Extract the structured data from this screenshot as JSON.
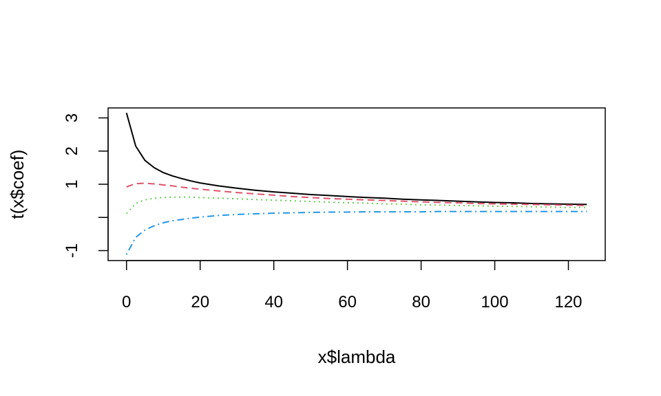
{
  "chart_data": {
    "type": "line",
    "title": "",
    "xlabel": "x$lambda",
    "ylabel": "t(x$coef)",
    "xlim": [
      -5,
      130
    ],
    "ylim": [
      -1.3,
      3.3
    ],
    "xticks": [
      0,
      20,
      40,
      60,
      80,
      100,
      120
    ],
    "yticks": [
      -1,
      0,
      1,
      2,
      3
    ],
    "yticklabels": [
      "-1",
      "",
      "1",
      "2",
      "3"
    ],
    "grid": false,
    "legend": "none",
    "series": [
      {
        "color": "#000000",
        "dash": "solid",
        "x": [
          0,
          2.5,
          5,
          7.5,
          10,
          12.5,
          15,
          17.5,
          20,
          25,
          30,
          35,
          40,
          45,
          50,
          55,
          60,
          65,
          70,
          75,
          80,
          85,
          90,
          95,
          100,
          105,
          110,
          115,
          120,
          125
        ],
        "y": [
          3.15,
          2.15,
          1.72,
          1.5,
          1.35,
          1.25,
          1.17,
          1.1,
          1.04,
          0.95,
          0.88,
          0.82,
          0.77,
          0.73,
          0.69,
          0.66,
          0.63,
          0.6,
          0.58,
          0.55,
          0.53,
          0.51,
          0.49,
          0.47,
          0.45,
          0.44,
          0.42,
          0.41,
          0.4,
          0.39
        ]
      },
      {
        "color": "#DF536B",
        "dash": "dashed",
        "x": [
          0,
          2.5,
          5,
          7.5,
          10,
          12.5,
          15,
          17.5,
          20,
          25,
          30,
          35,
          40,
          45,
          50,
          55,
          60,
          65,
          70,
          75,
          80,
          85,
          90,
          95,
          100,
          105,
          110,
          115,
          120,
          125
        ],
        "y": [
          0.92,
          1.02,
          1.03,
          1.01,
          0.98,
          0.95,
          0.91,
          0.88,
          0.85,
          0.8,
          0.75,
          0.71,
          0.67,
          0.63,
          0.6,
          0.57,
          0.55,
          0.53,
          0.51,
          0.49,
          0.47,
          0.45,
          0.44,
          0.42,
          0.41,
          0.4,
          0.39,
          0.38,
          0.37,
          0.36
        ]
      },
      {
        "color": "#61D04F",
        "dash": "dotted",
        "x": [
          0,
          2.5,
          5,
          7.5,
          10,
          12.5,
          15,
          17.5,
          20,
          25,
          30,
          35,
          40,
          45,
          50,
          55,
          60,
          65,
          70,
          75,
          80,
          85,
          90,
          95,
          100,
          105,
          110,
          115,
          120,
          125
        ],
        "y": [
          0.12,
          0.42,
          0.53,
          0.58,
          0.6,
          0.61,
          0.61,
          0.61,
          0.6,
          0.58,
          0.56,
          0.54,
          0.52,
          0.5,
          0.48,
          0.46,
          0.44,
          0.43,
          0.41,
          0.4,
          0.38,
          0.37,
          0.36,
          0.35,
          0.34,
          0.33,
          0.32,
          0.31,
          0.3,
          0.3
        ]
      },
      {
        "color": "#2297E6",
        "dash": "dotdash",
        "x": [
          0,
          2.5,
          5,
          7.5,
          10,
          12.5,
          15,
          17.5,
          20,
          25,
          30,
          35,
          40,
          45,
          50,
          55,
          60,
          65,
          70,
          75,
          80,
          85,
          90,
          95,
          100,
          105,
          110,
          115,
          120,
          125
        ],
        "y": [
          -1.12,
          -0.6,
          -0.38,
          -0.25,
          -0.16,
          -0.1,
          -0.06,
          -0.02,
          0.01,
          0.06,
          0.09,
          0.11,
          0.13,
          0.14,
          0.15,
          0.16,
          0.16,
          0.17,
          0.17,
          0.17,
          0.17,
          0.18,
          0.18,
          0.18,
          0.18,
          0.18,
          0.18,
          0.18,
          0.18,
          0.18
        ]
      }
    ]
  }
}
